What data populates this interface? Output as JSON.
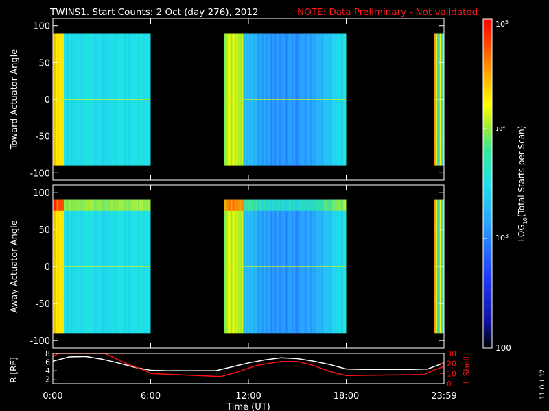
{
  "header": {
    "title": "TWINS1. Start Counts:  2 Oct (day 276), 2012",
    "note": "NOTE: Data Preliminary - Not validated"
  },
  "footer": {
    "date_stamp": "11 Oct 12"
  },
  "colors": {
    "background": "#000000",
    "foreground": "#ffffff",
    "note_red": "#ff1a1a",
    "r_curve": "#ffffff",
    "l_shell_curve": "#ff1010"
  },
  "chart_data": [
    {
      "type": "heatmap",
      "ylabel": "Toward Actuator Angle",
      "x_unit": "hours UT",
      "xlim": [
        0,
        24
      ],
      "ylim": [
        -110,
        110
      ],
      "y_data_range": [
        -90,
        90
      ],
      "yticks": [
        100,
        50,
        0,
        -50,
        -100
      ],
      "data_intervals_hours": [
        [
          0.0,
          6.0
        ],
        [
          10.5,
          18.0
        ],
        [
          23.4,
          24.0
        ]
      ],
      "typical_log10_counts": {
        "00:00-00:40": 4.3,
        "00:40-06:00": 3.5,
        "10:30-18:00": 3.4,
        "23:25-24:00": 4.3
      }
    },
    {
      "type": "heatmap",
      "ylabel": "Away Actuator Angle",
      "x_unit": "hours UT",
      "xlim": [
        0,
        24
      ],
      "ylim": [
        -110,
        110
      ],
      "y_data_range": [
        -90,
        90
      ],
      "yticks": [
        100,
        50,
        0,
        -50,
        -100
      ],
      "data_intervals_hours": [
        [
          0.0,
          6.0
        ],
        [
          10.5,
          18.0
        ],
        [
          23.4,
          24.0
        ]
      ],
      "typical_log10_counts": {
        "00:00-06:00": 3.6,
        "above_75_deg": 4.1,
        "10:30-18:00": 3.5,
        "23:25-24:00": 4.3
      }
    },
    {
      "type": "line",
      "ylabel_left": "R [RE]",
      "ylabel_right": "L Shell",
      "xlabel": "Time (UT)",
      "xticks": [
        "0:00",
        "6:00",
        "12:00",
        "18:00",
        "23:59"
      ],
      "xtick_hours": [
        0,
        6,
        12,
        18,
        24
      ],
      "ylim_left": [
        1,
        8
      ],
      "yticks_left": [
        2,
        4,
        6,
        8
      ],
      "ylim_right": [
        0,
        30
      ],
      "yticks_right": [
        0,
        10,
        20,
        30
      ],
      "series": [
        {
          "name": "R [RE]",
          "axis": "left",
          "x": [
            0,
            1,
            2,
            3,
            4,
            5,
            6,
            7,
            8,
            9,
            10,
            11,
            12,
            13,
            14,
            15,
            16,
            17,
            18,
            19,
            20,
            21,
            22,
            23,
            24
          ],
          "values": [
            6.2,
            7.2,
            7.3,
            6.7,
            5.8,
            4.8,
            4.1,
            4.0,
            4.0,
            4.0,
            4.0,
            4.9,
            5.8,
            6.5,
            7.0,
            6.8,
            6.2,
            5.4,
            4.4,
            4.3,
            4.3,
            4.3,
            4.3,
            4.4,
            5.8
          ]
        },
        {
          "name": "L Shell",
          "axis": "right",
          "x": [
            0,
            0.35,
            3.2,
            4.5,
            5.5,
            6.0,
            10.3,
            11.2,
            12.5,
            14.0,
            15.0,
            16.0,
            17.0,
            18.0,
            22.8,
            23.3,
            24.0
          ],
          "values": [
            27,
            30,
            30,
            20,
            14,
            10,
            7,
            11,
            18,
            22,
            22,
            18,
            12,
            8,
            9,
            13,
            17
          ]
        }
      ]
    },
    {
      "type": "heatmap",
      "role": "colorbar",
      "label": "LOG10(Total Starts per Scan)",
      "label_main": "LOG",
      "label_sub": "10",
      "label_rest": "(Total Starts per Scan)",
      "scale": "log",
      "range": [
        100,
        100000
      ],
      "tick_labels": {
        "top_base": "10",
        "top_exp": "5",
        "mid_base": "10",
        "mid_exp": "4",
        "low_base": "10",
        "low_exp": "3",
        "bottom": "100"
      }
    }
  ]
}
